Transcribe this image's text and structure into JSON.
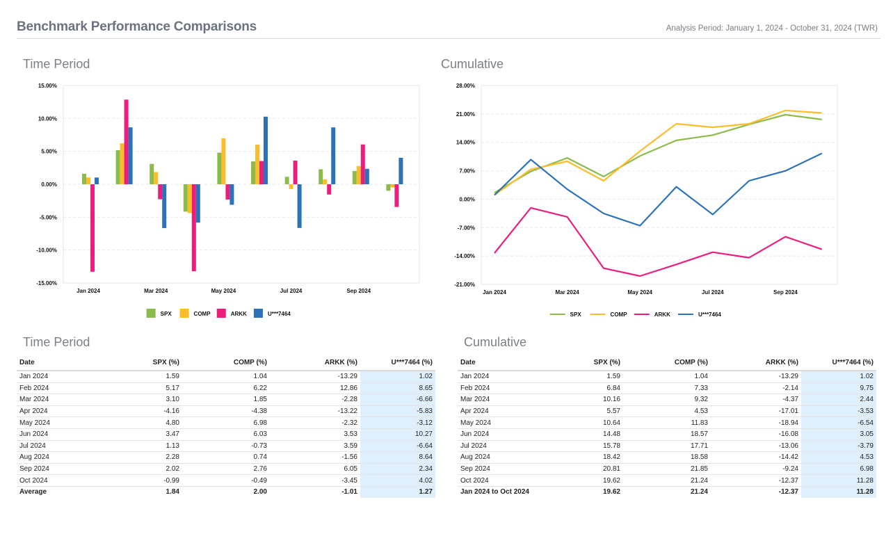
{
  "header": {
    "title": "Benchmark Performance Comparisons",
    "period": "Analysis Period: January 1, 2024 - October 31, 2024 (TWR)"
  },
  "colors": {
    "SPX": "#8cbb4c",
    "COMP": "#fbbd2c",
    "ARKK": "#ec1e7d",
    "U***7464": "#2c72b8"
  },
  "charts": {
    "bar_title": "Time Period",
    "line_title": "Cumulative"
  },
  "tables": {
    "period": {
      "title": "Time Period",
      "headers": [
        "Date",
        "SPX (%)",
        "COMP (%)",
        "ARKK (%)",
        "U***7464 (%)"
      ],
      "rows": [
        [
          "Jan 2024",
          "1.59",
          "1.04",
          "-13.29",
          "1.02"
        ],
        [
          "Feb 2024",
          "5.17",
          "6.22",
          "12.86",
          "8.65"
        ],
        [
          "Mar 2024",
          "3.10",
          "1.85",
          "-2.28",
          "-6.66"
        ],
        [
          "Apr 2024",
          "-4.16",
          "-4.38",
          "-13.22",
          "-5.83"
        ],
        [
          "May 2024",
          "4.80",
          "6.98",
          "-2.32",
          "-3.12"
        ],
        [
          "Jun 2024",
          "3.47",
          "6.03",
          "3.53",
          "10.27"
        ],
        [
          "Jul 2024",
          "1.13",
          "-0.73",
          "3.59",
          "-6.64"
        ],
        [
          "Aug 2024",
          "2.28",
          "0.74",
          "-1.56",
          "8.64"
        ],
        [
          "Sep 2024",
          "2.02",
          "2.76",
          "6.05",
          "2.34"
        ],
        [
          "Oct 2024",
          "-0.99",
          "-0.49",
          "-3.45",
          "4.02"
        ]
      ],
      "footer": [
        "Average",
        "1.84",
        "2.00",
        "-1.01",
        "1.27"
      ]
    },
    "cumulative": {
      "title": "Cumulative",
      "headers": [
        "Date",
        "SPX (%)",
        "COMP (%)",
        "ARKK (%)",
        "U***7464 (%)"
      ],
      "rows": [
        [
          "Jan 2024",
          "1.59",
          "1.04",
          "-13.29",
          "1.02"
        ],
        [
          "Feb 2024",
          "6.84",
          "7.33",
          "-2.14",
          "9.75"
        ],
        [
          "Mar 2024",
          "10.16",
          "9.32",
          "-4.37",
          "2.44"
        ],
        [
          "Apr 2024",
          "5.57",
          "4.53",
          "-17.01",
          "-3.53"
        ],
        [
          "May 2024",
          "10.64",
          "11.83",
          "-18.94",
          "-6.54"
        ],
        [
          "Jun 2024",
          "14.48",
          "18.57",
          "-16.08",
          "3.05"
        ],
        [
          "Jul 2024",
          "15.78",
          "17.71",
          "-13.06",
          "-3.79"
        ],
        [
          "Aug 2024",
          "18.42",
          "18.58",
          "-14.42",
          "4.53"
        ],
        [
          "Sep 2024",
          "20.81",
          "21.85",
          "-9.24",
          "6.98"
        ],
        [
          "Oct 2024",
          "19.62",
          "21.24",
          "-12.37",
          "11.28"
        ]
      ],
      "footer": [
        "Jan 2024 to Oct 2024",
        "19.62",
        "21.24",
        "-12.37",
        "11.28"
      ]
    }
  },
  "chart_data": [
    {
      "type": "bar",
      "title": "Time Period",
      "categories": [
        "Jan 2024",
        "Feb 2024",
        "Mar 2024",
        "Apr 2024",
        "May 2024",
        "Jun 2024",
        "Jul 2024",
        "Aug 2024",
        "Sep 2024",
        "Oct 2024"
      ],
      "x_tick_labels": [
        "Jan 2024",
        "",
        "Mar 2024",
        "",
        "May 2024",
        "",
        "Jul 2024",
        "",
        "Sep 2024",
        ""
      ],
      "ylim": [
        -15,
        15
      ],
      "y_ticks": [
        15,
        10,
        5,
        0,
        -5,
        -10,
        -15
      ],
      "y_tick_labels": [
        "15.00%",
        "10.00%",
        "5.00%",
        "0.00%",
        "-5.00%",
        "-10.00%",
        "-15.00%"
      ],
      "grid": true,
      "legend": "bottom",
      "series": [
        {
          "name": "SPX",
          "values": [
            1.59,
            5.17,
            3.1,
            -4.16,
            4.8,
            3.47,
            1.13,
            2.28,
            2.02,
            -0.99
          ]
        },
        {
          "name": "COMP",
          "values": [
            1.04,
            6.22,
            1.85,
            -4.38,
            6.98,
            6.03,
            -0.73,
            0.74,
            2.76,
            -0.49
          ]
        },
        {
          "name": "ARKK",
          "values": [
            -13.29,
            12.86,
            -2.28,
            -13.22,
            -2.32,
            3.53,
            3.59,
            -1.56,
            6.05,
            -3.45
          ]
        },
        {
          "name": "U***7464",
          "values": [
            1.02,
            8.65,
            -6.66,
            -5.83,
            -3.12,
            10.27,
            -6.64,
            8.64,
            2.34,
            4.02
          ]
        }
      ]
    },
    {
      "type": "line",
      "title": "Cumulative",
      "categories": [
        "Jan 2024",
        "Feb 2024",
        "Mar 2024",
        "Apr 2024",
        "May 2024",
        "Jun 2024",
        "Jul 2024",
        "Aug 2024",
        "Sep 2024",
        "Oct 2024"
      ],
      "x_tick_labels": [
        "Jan 2024",
        "",
        "Mar 2024",
        "",
        "May 2024",
        "",
        "Jul 2024",
        "",
        "Sep 2024",
        ""
      ],
      "ylim": [
        -21,
        28
      ],
      "y_ticks": [
        28,
        21,
        14,
        7,
        0,
        -7,
        -14,
        -21
      ],
      "y_tick_labels": [
        "28.00%",
        "21.00%",
        "14.00%",
        "7.00%",
        "0.00%",
        "-7.00%",
        "-14.00%",
        "-21.00%"
      ],
      "grid": true,
      "legend": "bottom",
      "series": [
        {
          "name": "SPX",
          "values": [
            1.59,
            6.84,
            10.16,
            5.57,
            10.64,
            14.48,
            15.78,
            18.42,
            20.81,
            19.62
          ]
        },
        {
          "name": "COMP",
          "values": [
            1.04,
            7.33,
            9.32,
            4.53,
            11.83,
            18.57,
            17.71,
            18.58,
            21.85,
            21.24
          ]
        },
        {
          "name": "ARKK",
          "values": [
            -13.29,
            -2.14,
            -4.37,
            -17.01,
            -18.94,
            -16.08,
            -13.06,
            -14.42,
            -9.24,
            -12.37
          ]
        },
        {
          "name": "U***7464",
          "values": [
            1.02,
            9.75,
            2.44,
            -3.53,
            -6.54,
            3.05,
            -3.79,
            4.53,
            6.98,
            11.28
          ]
        }
      ]
    }
  ]
}
